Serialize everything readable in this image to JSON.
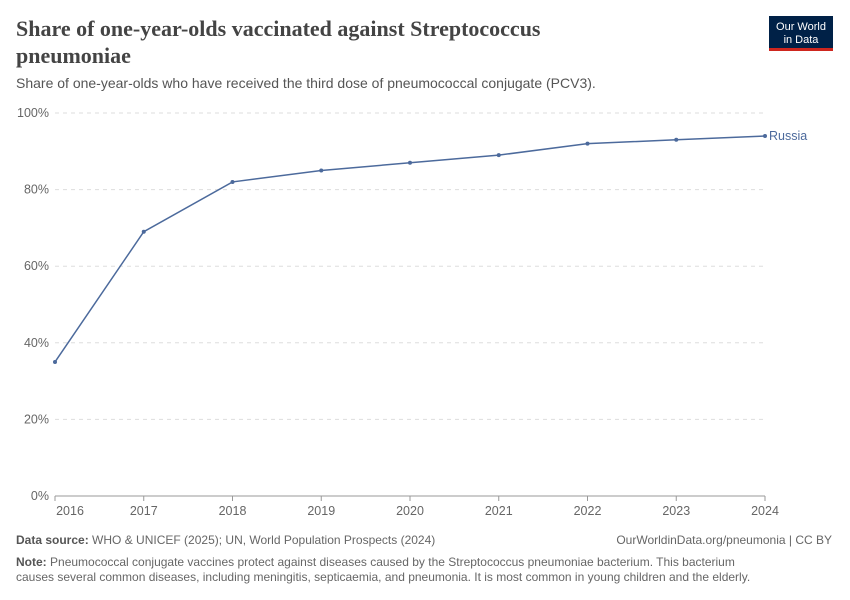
{
  "header": {
    "title_lines": [
      "Share of one-year-olds vaccinated against Streptococcus",
      "pneumoniae"
    ],
    "subtitle": "Share of one-year-olds who have received the third dose of pneumococcal conjugate (PCV3).",
    "logo_lines": [
      "Our World",
      "in Data"
    ]
  },
  "chart_data": {
    "type": "line",
    "x": [
      2016,
      2017,
      2018,
      2019,
      2020,
      2021,
      2022,
      2023,
      2024
    ],
    "series": [
      {
        "name": "Russia",
        "color": "#4c6a9c",
        "values": [
          35,
          69,
          82,
          85,
          87,
          89,
          92,
          93,
          94
        ]
      }
    ],
    "xlim": [
      2016,
      2024
    ],
    "xticks": [
      2016,
      2017,
      2018,
      2019,
      2020,
      2021,
      2022,
      2023,
      2024
    ],
    "ylim": [
      0,
      100
    ],
    "yticks": [
      {
        "value": 0,
        "label": "0%"
      },
      {
        "value": 20,
        "label": "20%"
      },
      {
        "value": 40,
        "label": "40%"
      },
      {
        "value": 60,
        "label": "60%"
      },
      {
        "value": 80,
        "label": "80%"
      },
      {
        "value": 100,
        "label": "100%"
      }
    ],
    "grid": true
  },
  "footer": {
    "source_label": "Data source:",
    "source": "WHO & UNICEF (2025); UN, World Population Prospects (2024)",
    "url": "OurWorldinData.org/pneumonia | CC BY",
    "note_label": "Note:",
    "note_lines": [
      "Pneumococcal conjugate vaccines protect against diseases caused by the Streptococcus pneumoniae bacterium. This bacterium",
      "causes several common diseases, including meningitis, septicaemia, and pneumonia. It is most common in young children and the elderly."
    ]
  }
}
